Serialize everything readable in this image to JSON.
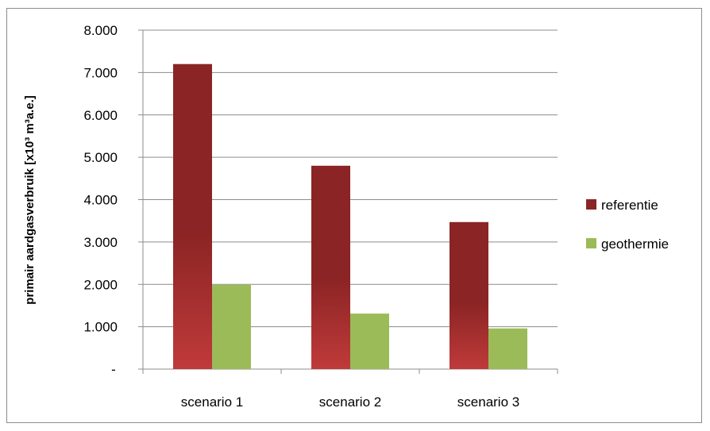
{
  "chart_data": {
    "type": "bar",
    "categories": [
      "scenario 1",
      "scenario 2",
      "scenario 3"
    ],
    "series": [
      {
        "name": "referentie",
        "values": [
          7200,
          4800,
          3470
        ],
        "color": "#8b2424",
        "color_light": "#c03a3a"
      },
      {
        "name": "geothermie",
        "values": [
          1990,
          1310,
          960
        ],
        "color": "#9bbb59"
      }
    ],
    "ylabel": "primair aardgasverbruik  [x10³ m³a.e.]",
    "xlabel": "",
    "ylim": [
      0,
      8000
    ],
    "yticks": [
      {
        "value": 0,
        "label": "-"
      },
      {
        "value": 1000,
        "label": "1.000"
      },
      {
        "value": 2000,
        "label": "2.000"
      },
      {
        "value": 3000,
        "label": "3.000"
      },
      {
        "value": 4000,
        "label": "4.000"
      },
      {
        "value": 5000,
        "label": "5.000"
      },
      {
        "value": 6000,
        "label": "6.000"
      },
      {
        "value": 7000,
        "label": "7.000"
      },
      {
        "value": 8000,
        "label": "8.000"
      }
    ],
    "grid": true,
    "legend": "right"
  }
}
